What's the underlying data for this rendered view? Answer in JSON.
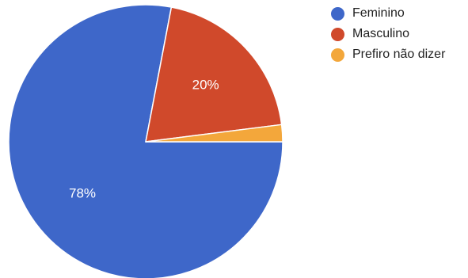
{
  "chart_data": {
    "type": "pie",
    "series": [
      {
        "categories": [
          "Feminino",
          "Masculino",
          "Prefiro não dizer"
        ],
        "values": [
          78,
          20,
          2
        ],
        "colors": [
          "#3e67c9",
          "#d0492b",
          "#f3a73b"
        ],
        "slice_labels": [
          "78%",
          "20%",
          ""
        ]
      }
    ],
    "legend": {
      "position": "top-right",
      "entries": [
        "Feminino",
        "Masculino",
        "Prefiro não dizer"
      ]
    }
  }
}
